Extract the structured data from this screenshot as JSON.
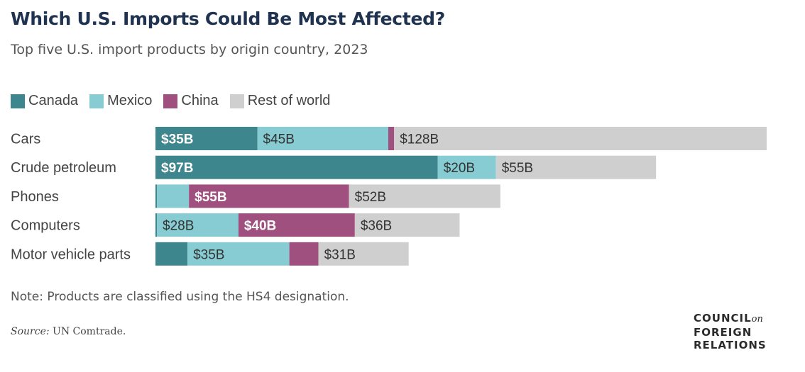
{
  "title": "Which U.S. Imports Could Be Most Affected?",
  "subtitle": "Top five U.S. import products by origin country, 2023",
  "legend": [
    {
      "label": "Canada",
      "color": "#3e868e"
    },
    {
      "label": "Mexico",
      "color": "#86ccd2"
    },
    {
      "label": "China",
      "color": "#a0507e"
    },
    {
      "label": "Rest of world",
      "color": "#cfcfcf"
    }
  ],
  "note": "Note: Products are classified using the HS4 designation.",
  "source": {
    "label": "Source:",
    "text": "UN Comtrade."
  },
  "logo": {
    "line1": "COUNCIL",
    "line1_suffix": "on",
    "line2": "FOREIGN",
    "line3": "RELATIONS"
  },
  "chart_data": {
    "type": "bar",
    "orientation": "horizontal",
    "stacked": true,
    "title": "Which U.S. Imports Could Be Most Affected?",
    "subtitle": "Top five U.S. import products by origin country, 2023",
    "units": "USD billions",
    "categories": [
      "Cars",
      "Crude petroleum",
      "Phones",
      "Computers",
      "Motor vehicle parts"
    ],
    "series": [
      {
        "name": "Canada",
        "color": "#3e868e",
        "values": [
          35,
          97,
          0.5,
          0.5,
          11
        ],
        "labels": [
          "$35B",
          "$97B",
          "",
          "",
          ""
        ],
        "label_color": "#ffffff",
        "label_bold": true
      },
      {
        "name": "Mexico",
        "color": "#86ccd2",
        "values": [
          45,
          20,
          11,
          28,
          35
        ],
        "labels": [
          "$45B",
          "$20B",
          "",
          "$28B",
          "$35B"
        ],
        "label_color": "#333333",
        "label_bold": false
      },
      {
        "name": "China",
        "color": "#a0507e",
        "values": [
          2,
          0,
          55,
          40,
          10
        ],
        "labels": [
          "",
          "",
          "$55B",
          "$40B",
          ""
        ],
        "label_color": "#ffffff",
        "label_bold": true
      },
      {
        "name": "Rest of world",
        "color": "#cfcfcf",
        "values": [
          128,
          55,
          52,
          36,
          31
        ],
        "labels": [
          "$128B",
          "$55B",
          "$52B",
          "$36B",
          "$31B"
        ],
        "label_color": "#333333",
        "label_bold": false
      }
    ],
    "xlim": [
      0,
      210
    ],
    "grid": false,
    "legend_position": "top-left"
  }
}
